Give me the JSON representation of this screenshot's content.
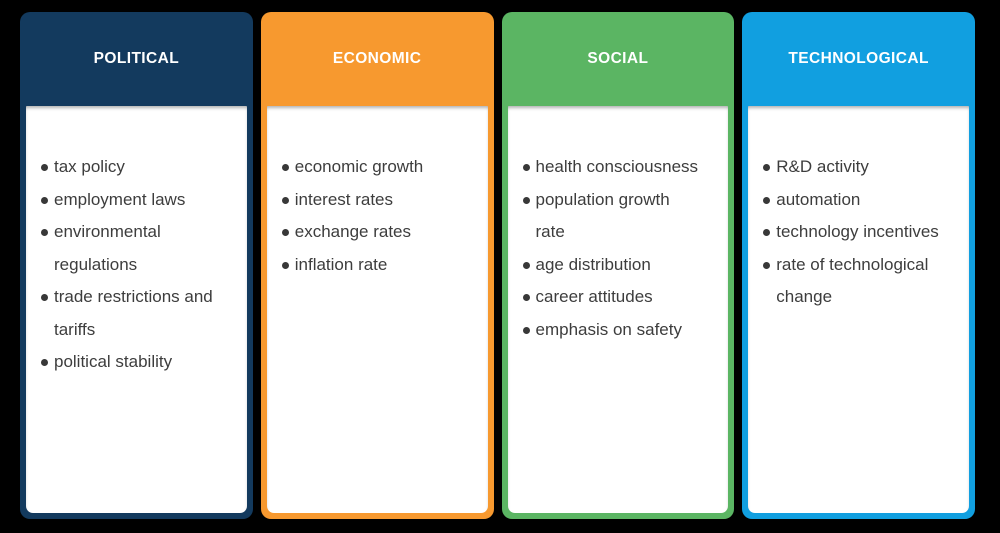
{
  "board": {
    "background_color": "#000000",
    "item_text_color": "#3d3d3d",
    "bullet_color": "#383838",
    "header_text_color": "#ffffff",
    "columns": [
      {
        "id": "political",
        "label": "POLITICAL",
        "color": "#133A5E",
        "items": [
          {
            "lines": [
              "tax policy"
            ]
          },
          {
            "lines": [
              "employment laws"
            ]
          },
          {
            "lines": [
              "environmental",
              "regulations"
            ]
          },
          {
            "lines": [
              "trade restrictions and",
              "tariffs"
            ]
          },
          {
            "lines": [
              "political stability"
            ]
          }
        ]
      },
      {
        "id": "economic",
        "label": "ECONOMIC",
        "color": "#F7992F",
        "items": [
          {
            "lines": [
              "economic growth"
            ]
          },
          {
            "lines": [
              "interest rates"
            ]
          },
          {
            "lines": [
              "exchange rates"
            ]
          },
          {
            "lines": [
              "inflation rate"
            ]
          }
        ]
      },
      {
        "id": "social",
        "label": "SOCIAL",
        "color": "#5BB563",
        "items": [
          {
            "lines": [
              "health consciousness"
            ]
          },
          {
            "lines": [
              "population growth",
              "rate"
            ]
          },
          {
            "lines": [
              "age distribution"
            ]
          },
          {
            "lines": [
              "career attitudes"
            ]
          },
          {
            "lines": [
              "emphasis on safety"
            ]
          }
        ]
      },
      {
        "id": "technological",
        "label": "TECHNOLOGICAL",
        "color": "#119FE0",
        "items": [
          {
            "lines": [
              "R&D activity"
            ]
          },
          {
            "lines": [
              "automation"
            ]
          },
          {
            "lines": [
              "technology incentives"
            ]
          },
          {
            "lines": [
              "rate of technological",
              "change"
            ]
          }
        ]
      }
    ]
  }
}
